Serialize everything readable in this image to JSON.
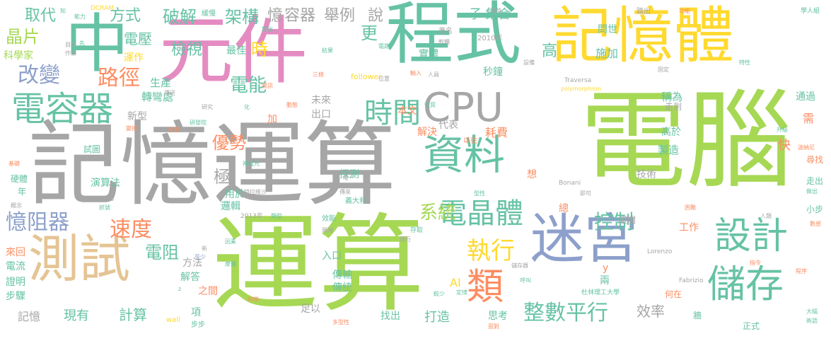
{
  "palette": {
    "pink": "#e48cc1",
    "teal": "#66c2a5",
    "grey": "#a6a6a6",
    "lime": "#a6d854",
    "yellow": "#ffd92f",
    "tan": "#e5c494",
    "blue": "#8da0cb",
    "orange": "#fc8d62"
  },
  "words": [
    {
      "text": "電腦",
      "color": "lime",
      "size": 150
    },
    {
      "text": "運算",
      "color": "lime",
      "size": 150
    },
    {
      "text": "元件",
      "color": "pink",
      "size": 100
    },
    {
      "text": "記憶體",
      "color": "yellow",
      "size": 88
    },
    {
      "text": "程式",
      "color": "teal",
      "size": 88
    },
    {
      "text": "中",
      "color": "teal",
      "size": 88
    },
    {
      "text": "迷宮",
      "color": "blue",
      "size": 70
    },
    {
      "text": "測試",
      "color": "tan",
      "size": 70
    },
    {
      "text": "電容器",
      "color": "teal",
      "size": 52
    },
    {
      "text": "資料",
      "color": "teal",
      "size": 56
    },
    {
      "text": "設計",
      "color": "teal",
      "size": 50
    },
    {
      "text": "儲存",
      "color": "teal",
      "size": 46
    },
    {
      "text": "CPU",
      "color": "grey",
      "size": 56
    },
    {
      "text": "時間",
      "color": "teal",
      "size": 38
    },
    {
      "text": "電晶體",
      "color": "teal",
      "size": 38
    },
    {
      "text": "類",
      "color": "orange",
      "size": 50
    },
    {
      "text": "執行",
      "color": "yellow",
      "size": 32
    },
    {
      "text": "整數平行",
      "color": "teal",
      "size": 30
    },
    {
      "text": "憶阻器",
      "color": "blue",
      "size": 30
    },
    {
      "text": "速度",
      "color": "orange",
      "size": 30
    },
    {
      "text": "改變",
      "color": "blue",
      "size": 30
    },
    {
      "text": "路徑",
      "color": "orange",
      "size": 30
    },
    {
      "text": "電能",
      "color": "teal",
      "size": 24
    },
    {
      "text": "系統",
      "color": "lime",
      "size": 24
    },
    {
      "text": "控制",
      "color": "teal",
      "size": 24
    },
    {
      "text": "電阻",
      "color": "teal",
      "size": 22
    },
    {
      "text": "晶片",
      "color": "lime",
      "size": 22
    },
    {
      "text": "取代",
      "color": "teal",
      "size": 20
    },
    {
      "text": "方式",
      "color": "teal",
      "size": 20
    },
    {
      "text": "破解",
      "color": "teal",
      "size": 22
    },
    {
      "text": "架構",
      "color": "teal",
      "size": 22
    },
    {
      "text": "憶",
      "color": "grey",
      "size": 20
    },
    {
      "text": "容器",
      "color": "grey",
      "size": 20
    },
    {
      "text": "舉例",
      "color": "grey",
      "size": 20
    },
    {
      "text": "說",
      "color": "grey",
      "size": 20
    },
    {
      "text": "時",
      "color": "yellow",
      "size": 24
    },
    {
      "text": "更",
      "color": "teal",
      "size": 24
    },
    {
      "text": "檢視",
      "color": "teal",
      "size": 20
    },
    {
      "text": "電壓",
      "color": "teal",
      "size": 18
    },
    {
      "text": "最佳",
      "color": "teal",
      "size": 14
    },
    {
      "text": "科學家",
      "color": "lime",
      "size": 14
    },
    {
      "text": "運作",
      "color": "yellow",
      "size": 14
    },
    {
      "text": "生產",
      "color": "teal",
      "size": 14
    },
    {
      "text": "轉彎處",
      "color": "teal",
      "size": 14
    },
    {
      "text": "極",
      "color": "grey",
      "size": 22
    },
    {
      "text": "優勢",
      "color": "orange",
      "size": 22
    },
    {
      "text": "新型",
      "color": "grey",
      "size": 14
    },
    {
      "text": "未來",
      "color": "grey",
      "size": 14
    },
    {
      "text": "出口",
      "color": "grey",
      "size": 14
    },
    {
      "text": "本文",
      "color": "orange",
      "size": 14
    },
    {
      "text": "代表",
      "color": "grey",
      "size": 14
    },
    {
      "text": "解決",
      "color": "orange",
      "size": 14
    },
    {
      "text": "耗費",
      "color": "orange",
      "size": 16
    },
    {
      "text": "秒鐘",
      "color": "teal",
      "size": 14
    },
    {
      "text": "實體",
      "color": "teal",
      "size": 14
    },
    {
      "text": "集合",
      "color": "teal",
      "size": 14
    },
    {
      "text": "子",
      "color": "teal",
      "size": 14
    },
    {
      "text": "高",
      "color": "teal",
      "size": 22
    },
    {
      "text": "施加",
      "color": "teal",
      "size": 16
    },
    {
      "text": "問世",
      "color": "teal",
      "size": 14
    },
    {
      "text": "稱為",
      "color": "teal",
      "size": 14
    },
    {
      "text": "走到",
      "color": "grey",
      "size": 12
    },
    {
      "text": "高於",
      "color": "teal",
      "size": 14
    },
    {
      "text": "製造",
      "color": "teal",
      "size": 14
    },
    {
      "text": "技術",
      "color": "grey",
      "size": 14
    },
    {
      "text": "想",
      "color": "orange",
      "size": 14
    },
    {
      "text": "快",
      "color": "orange",
      "size": 18
    },
    {
      "text": "通過",
      "color": "teal",
      "size": 14
    },
    {
      "text": "尋找",
      "color": "orange",
      "size": 12
    },
    {
      "text": "需",
      "color": "orange",
      "size": 16
    },
    {
      "text": "工作",
      "color": "orange",
      "size": 14
    },
    {
      "text": "演算法",
      "color": "teal",
      "size": 14
    },
    {
      "text": "試圖",
      "color": "teal",
      "size": 12
    },
    {
      "text": "硬體",
      "color": "teal",
      "size": 12
    },
    {
      "text": "年",
      "color": "teal",
      "size": 12
    },
    {
      "text": "用於",
      "color": "teal",
      "size": 14
    },
    {
      "text": "探測",
      "color": "teal",
      "size": 14
    },
    {
      "text": "邏輯",
      "color": "teal",
      "size": 14
    },
    {
      "text": "電流",
      "color": "teal",
      "size": 14
    },
    {
      "text": "來回",
      "color": "orange",
      "size": 14
    },
    {
      "text": "證明",
      "color": "teal",
      "size": 14
    },
    {
      "text": "步驟",
      "color": "teal",
      "size": 14
    },
    {
      "text": "記憶",
      "color": "grey",
      "size": 16
    },
    {
      "text": "現有",
      "color": "teal",
      "size": 18
    },
    {
      "text": "計算",
      "color": "teal",
      "size": 18
    },
    {
      "text": "方法",
      "color": "grey",
      "size": 14
    },
    {
      "text": "解答",
      "color": "teal",
      "size": 14
    },
    {
      "text": "之間",
      "color": "orange",
      "size": 14
    },
    {
      "text": "項",
      "color": "teal",
      "size": 14
    },
    {
      "text": "傳輸",
      "color": "teal",
      "size": 14
    },
    {
      "text": "傳統",
      "color": "teal",
      "size": 14
    },
    {
      "text": "入口",
      "color": "teal",
      "size": 14
    },
    {
      "text": "足以",
      "color": "grey",
      "size": 14
    },
    {
      "text": "找出",
      "color": "teal",
      "size": 14
    },
    {
      "text": "打造",
      "color": "teal",
      "size": 18
    },
    {
      "text": "思考",
      "color": "teal",
      "size": 14
    },
    {
      "text": "效率",
      "color": "grey",
      "size": 18
    },
    {
      "text": "AI",
      "color": "yellow",
      "size": 16
    },
    {
      "text": "y",
      "color": "orange",
      "size": 14
    },
    {
      "text": "兩",
      "color": "teal",
      "size": 14
    },
    {
      "text": "總",
      "color": "orange",
      "size": 14
    },
    {
      "text": "何在",
      "color": "orange",
      "size": 12
    },
    {
      "text": "牆",
      "color": "teal",
      "size": 12
    },
    {
      "text": "正式",
      "color": "teal",
      "size": 12
    },
    {
      "text": "走出",
      "color": "teal",
      "size": 12
    },
    {
      "text": "小步",
      "color": "teal",
      "size": 12
    },
    {
      "text": "避開",
      "color": "grey",
      "size": 12
    },
    {
      "text": "Fabrizio",
      "color": "grey",
      "size": 9
    },
    {
      "text": "Lorenzo",
      "color": "grey",
      "size": 9
    },
    {
      "text": "Bonani",
      "color": "grey",
      "size": 9
    },
    {
      "text": "杜林理工大學",
      "color": "teal",
      "size": 9
    },
    {
      "text": "follower",
      "color": "yellow",
      "size": 11
    },
    {
      "text": "Traversa",
      "color": "grey",
      "size": 9
    },
    {
      "text": "polymorphism",
      "color": "yellow",
      "size": 8
    },
    {
      "text": "wall",
      "color": "yellow",
      "size": 10
    },
    {
      "text": "步步",
      "color": "teal",
      "size": 10
    },
    {
      "text": "2013年",
      "color": "grey",
      "size": 9
    },
    {
      "text": "2010年",
      "color": "grey",
      "size": 10
    },
    {
      "text": "著名",
      "color": "grey",
      "size": 10
    },
    {
      "text": "DCRAM",
      "color": "yellow",
      "size": 9
    },
    {
      "text": "緩慢",
      "color": "teal",
      "size": 10
    },
    {
      "text": "踏出",
      "color": "grey",
      "size": 10
    },
    {
      "text": "學人組",
      "color": "teal",
      "size": 9
    },
    {
      "text": "功能",
      "color": "orange",
      "size": 8
    },
    {
      "text": "以往",
      "color": "orange",
      "size": 10
    },
    {
      "text": "義大利",
      "color": "teal",
      "size": 10
    },
    {
      "text": "效能",
      "color": "teal",
      "size": 10
    },
    {
      "text": "存取",
      "color": "teal",
      "size": 9
    },
    {
      "text": "人類",
      "color": "grey",
      "size": 8
    },
    {
      "text": "概念",
      "color": "grey",
      "size": 8
    },
    {
      "text": "抓號",
      "color": "teal",
      "size": 8
    },
    {
      "text": "Fabio",
      "color": "grey",
      "size": 8
    },
    {
      "text": "多型性",
      "color": "orange",
      "size": 8
    },
    {
      "text": "現行",
      "color": "grey",
      "size": 8
    },
    {
      "text": "面對",
      "color": "orange",
      "size": 8
    },
    {
      "text": "定律",
      "color": "teal",
      "size": 8
    },
    {
      "text": "較少",
      "color": "teal",
      "size": 8
    },
    {
      "text": "呼叫",
      "color": "teal",
      "size": 8
    },
    {
      "text": "程序",
      "color": "orange",
      "size": 8
    },
    {
      "text": "指令",
      "color": "orange",
      "size": 8
    },
    {
      "text": "大幅",
      "color": "teal",
      "size": 8
    },
    {
      "text": "術語",
      "color": "teal",
      "size": 8
    },
    {
      "text": "做出",
      "color": "teal",
      "size": 8
    },
    {
      "text": "困難",
      "color": "orange",
      "size": 8
    },
    {
      "text": "數感",
      "color": "orange",
      "size": 8
    },
    {
      "text": "波納尼",
      "color": "orange",
      "size": 8
    },
    {
      "text": "升級",
      "color": "teal",
      "size": 8
    },
    {
      "text": "特性",
      "color": "teal",
      "size": 8
    },
    {
      "text": "固定",
      "color": "grey",
      "size": 8
    },
    {
      "text": "設備",
      "color": "grey",
      "size": 8
    },
    {
      "text": "輸入",
      "color": "orange",
      "size": 8
    },
    {
      "text": "人員",
      "color": "grey",
      "size": 8
    },
    {
      "text": "電荷",
      "color": "grey",
      "size": 8
    },
    {
      "text": "知",
      "color": "teal",
      "size": 8
    },
    {
      "text": "能力",
      "color": "teal",
      "size": 8
    },
    {
      "text": "目的",
      "color": "grey",
      "size": 8
    },
    {
      "text": "作業",
      "color": "grey",
      "size": 8
    },
    {
      "text": "先",
      "color": "teal",
      "size": 8
    },
    {
      "text": "提出",
      "color": "teal",
      "size": 8
    },
    {
      "text": "結果",
      "color": "teal",
      "size": 8
    },
    {
      "text": "電路",
      "color": "teal",
      "size": 8
    },
    {
      "text": "位置",
      "color": "grey",
      "size": 8
    },
    {
      "text": "三條",
      "color": "orange",
      "size": 8
    },
    {
      "text": "資訊",
      "color": "orange",
      "size": 8
    },
    {
      "text": "傳送",
      "color": "grey",
      "size": 8
    },
    {
      "text": "研究",
      "color": "grey",
      "size": 8
    },
    {
      "text": "化",
      "color": "teal",
      "size": 8
    },
    {
      "text": "動態",
      "color": "orange",
      "size": 8
    },
    {
      "text": "性質",
      "color": "teal",
      "size": 8
    },
    {
      "text": "變換",
      "color": "orange",
      "size": 8
    },
    {
      "text": "利用",
      "color": "orange",
      "size": 8
    },
    {
      "text": "研發院",
      "color": "teal",
      "size": 8
    },
    {
      "text": "神經元",
      "color": "teal",
      "size": 8
    },
    {
      "text": "隨機",
      "color": "grey",
      "size": 8
    },
    {
      "text": "特拉維沙",
      "color": "grey",
      "size": 8
    },
    {
      "text": "類型",
      "color": "teal",
      "size": 8
    },
    {
      "text": "展現",
      "color": "grey",
      "size": 8
    },
    {
      "text": "因素",
      "color": "teal",
      "size": 8
    },
    {
      "text": "摩爾",
      "color": "teal",
      "size": 8
    },
    {
      "text": "儲存器",
      "color": "grey",
      "size": 8
    },
    {
      "text": "型性",
      "color": "teal",
      "size": 8
    },
    {
      "text": "即可",
      "color": "grey",
      "size": 8
    },
    {
      "text": "傳來",
      "color": "grey",
      "size": 8
    },
    {
      "text": "唯一",
      "color": "grey",
      "size": 8
    },
    {
      "text": "基礎",
      "color": "orange",
      "size": 8
    },
    {
      "text": "至少",
      "color": "blue",
      "size": 8
    },
    {
      "text": "新",
      "color": "grey",
      "size": 8
    },
    {
      "text": "科學",
      "color": "orange",
      "size": 8
    },
    {
      "text": "z",
      "color": "teal",
      "size": 8
    },
    {
      "text": "軟體",
      "color": "grey",
      "size": 8
    },
    {
      "text": "加",
      "color": "orange",
      "size": 14
    }
  ]
}
